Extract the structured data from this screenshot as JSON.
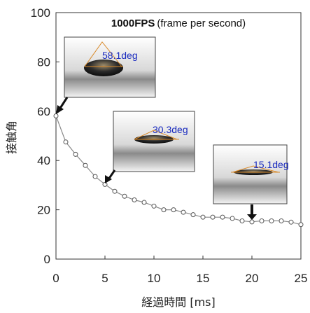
{
  "chart_data": {
    "type": "scatter",
    "title_bold": "1000FPS",
    "title_rest": "(frame per second)",
    "xlabel": "経過時間 [ms]",
    "ylabel": "接触角",
    "xlim": [
      0,
      25
    ],
    "ylim": [
      0,
      100
    ],
    "xticks": [
      "0",
      "5",
      "10",
      "15",
      "20",
      "25"
    ],
    "yticks": [
      "0",
      "20",
      "40",
      "60",
      "80",
      "100"
    ],
    "series": [
      {
        "x": [
          0,
          1,
          2,
          3,
          4,
          5,
          6,
          7,
          8,
          9,
          10,
          11,
          12,
          13,
          14,
          15,
          16,
          17,
          18,
          19,
          20,
          21,
          22,
          23,
          24,
          25
        ],
        "y": [
          58.1,
          47.5,
          42.5,
          38,
          33.5,
          30.3,
          27.5,
          25.5,
          24,
          23,
          21.5,
          20,
          20,
          19,
          18,
          17,
          17,
          17,
          16.5,
          15.5,
          15.1,
          15.5,
          15.5,
          15.5,
          15,
          14
        ]
      }
    ],
    "annotations": [
      {
        "label": "58.1deg",
        "x": 0,
        "y": 58.1
      },
      {
        "label": "30.3deg",
        "x": 5,
        "y": 30.3
      },
      {
        "label": "15.1deg",
        "x": 20,
        "y": 15.1
      }
    ],
    "colors": {
      "line": "#888888",
      "marker_edge": "#555555",
      "marker_fill": "#ffffff",
      "label": "#1a2bbf"
    }
  }
}
